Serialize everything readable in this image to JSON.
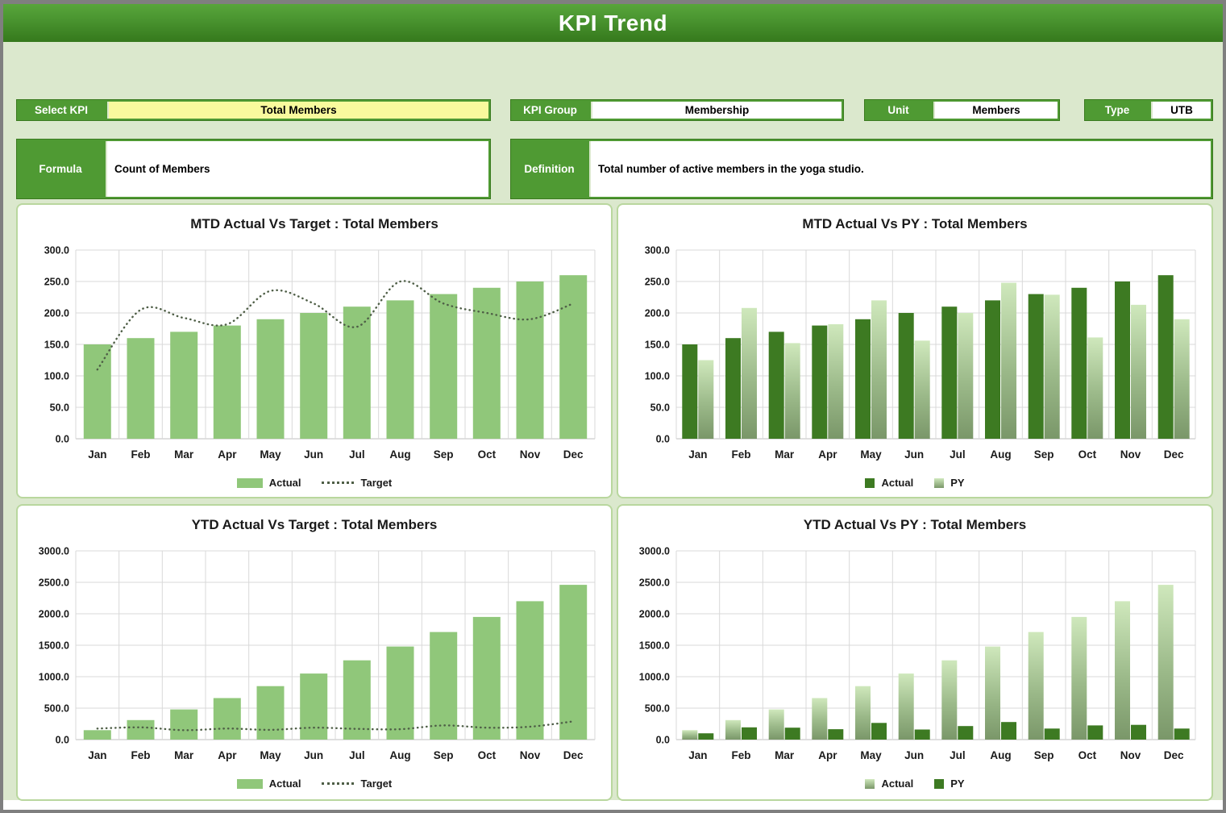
{
  "window": {
    "title": "KPI Trend"
  },
  "theme": {
    "banner_green_top": "#58a53b",
    "banner_green_bottom": "#35791c",
    "label_green": "#4f9a33",
    "page_background": "#dbe8cd",
    "panel_border_green": "#b9d79e",
    "select_yellow": "#f9fa9d",
    "bar_light_green": "#90c77a",
    "bar_dark_green": "#3d7a22",
    "bar_gradient_top": "#cfe8bc",
    "bar_gradient_bottom": "#7a9769",
    "target_line_color": "#4e5e46",
    "gridline_color": "#d9d9d9"
  },
  "controls": {
    "select_kpi": {
      "label": "Select KPI",
      "value": "Total Members"
    },
    "kpi_group": {
      "label": "KPI Group",
      "value": "Membership"
    },
    "unit": {
      "label": "Unit",
      "value": "Members"
    },
    "type": {
      "label": "Type",
      "value": "UTB"
    },
    "formula": {
      "label": "Formula",
      "value": "Count of Members"
    },
    "definition": {
      "label": "Definition",
      "value": "Total number of active members in the yoga studio."
    }
  },
  "chart_data": [
    {
      "id": "mtd-actual-vs-target",
      "type": "bar+line",
      "title": "MTD Actual Vs Target : Total Members",
      "categories": [
        "Jan",
        "Feb",
        "Mar",
        "Apr",
        "May",
        "Jun",
        "Jul",
        "Aug",
        "Sep",
        "Oct",
        "Nov",
        "Dec"
      ],
      "series": [
        {
          "name": "Actual",
          "kind": "bar",
          "style": "light",
          "values": [
            150,
            160,
            170,
            180,
            190,
            200,
            210,
            220,
            230,
            240,
            250,
            260
          ]
        },
        {
          "name": "Target",
          "kind": "dotted-line",
          "values": [
            110,
            205,
            192,
            182,
            235,
            215,
            178,
            250,
            215,
            200,
            190,
            215
          ]
        }
      ],
      "ylim": [
        0,
        300
      ],
      "ytick": 50,
      "grid": true,
      "legend_position": "bottom"
    },
    {
      "id": "mtd-actual-vs-py",
      "type": "bar",
      "title": "MTD Actual Vs PY : Total Members",
      "categories": [
        "Jan",
        "Feb",
        "Mar",
        "Apr",
        "May",
        "Jun",
        "Jul",
        "Aug",
        "Sep",
        "Oct",
        "Nov",
        "Dec"
      ],
      "series": [
        {
          "name": "Actual",
          "kind": "bar",
          "style": "dark",
          "values": [
            150,
            160,
            170,
            180,
            190,
            200,
            210,
            220,
            230,
            240,
            250,
            260
          ]
        },
        {
          "name": "PY",
          "kind": "bar",
          "style": "gradient",
          "values": [
            125,
            208,
            152,
            182,
            220,
            156,
            200,
            248,
            229,
            161,
            213,
            190
          ]
        }
      ],
      "ylim": [
        0,
        300
      ],
      "ytick": 50,
      "grid": true,
      "legend_position": "bottom"
    },
    {
      "id": "ytd-actual-vs-target",
      "type": "bar+line",
      "title": "YTD Actual Vs Target : Total Members",
      "categories": [
        "Jan",
        "Feb",
        "Mar",
        "Apr",
        "May",
        "Jun",
        "Jul",
        "Aug",
        "Sep",
        "Oct",
        "Nov",
        "Dec"
      ],
      "series": [
        {
          "name": "Actual",
          "kind": "bar",
          "style": "light",
          "values": [
            150,
            310,
            480,
            660,
            850,
            1050,
            1260,
            1480,
            1710,
            1950,
            2200,
            2460
          ]
        },
        {
          "name": "Target",
          "kind": "dotted-line",
          "values": [
            175,
            195,
            150,
            175,
            155,
            190,
            170,
            165,
            225,
            190,
            205,
            290
          ]
        }
      ],
      "ylim": [
        0,
        3000
      ],
      "ytick": 500,
      "grid": true,
      "legend_position": "bottom"
    },
    {
      "id": "ytd-actual-vs-py",
      "type": "bar",
      "title": "YTD Actual Vs PY : Total Members",
      "categories": [
        "Jan",
        "Feb",
        "Mar",
        "Apr",
        "May",
        "Jun",
        "Jul",
        "Aug",
        "Sep",
        "Oct",
        "Nov",
        "Dec"
      ],
      "series": [
        {
          "name": "Actual",
          "kind": "bar",
          "style": "gradient",
          "values": [
            150,
            310,
            480,
            660,
            850,
            1050,
            1260,
            1480,
            1710,
            1950,
            2200,
            2460
          ]
        },
        {
          "name": "PY",
          "kind": "bar",
          "style": "dark",
          "values": [
            100,
            195,
            190,
            165,
            265,
            160,
            215,
            280,
            175,
            225,
            235,
            175
          ]
        }
      ],
      "ylim": [
        0,
        3000
      ],
      "ytick": 500,
      "grid": true,
      "legend_position": "bottom"
    }
  ]
}
